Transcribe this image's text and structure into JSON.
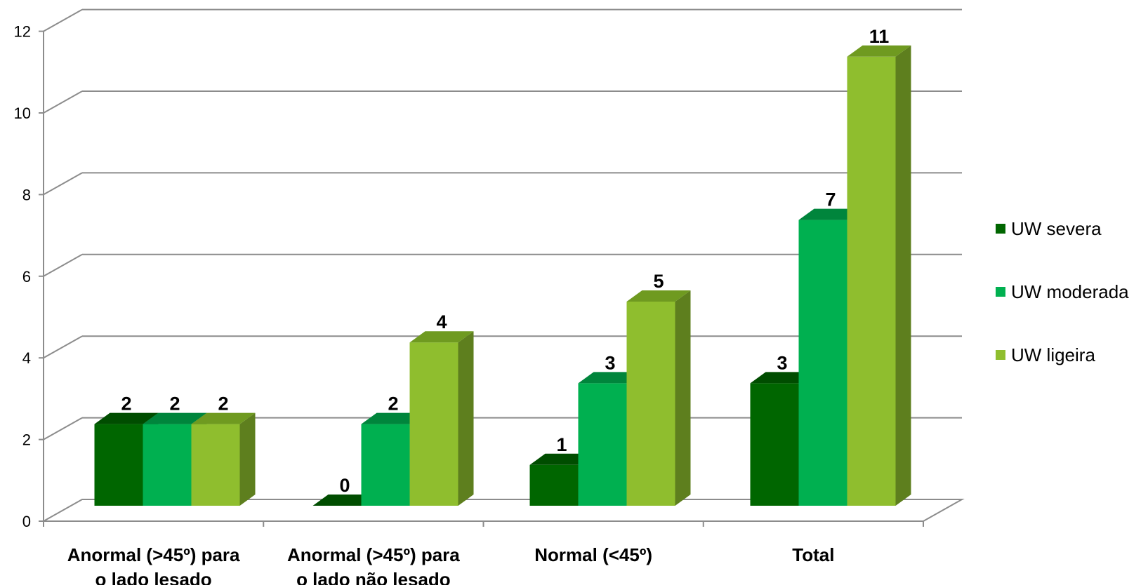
{
  "chart_data": {
    "type": "bar",
    "style": "3d-clustered-column",
    "categories": [
      [
        "Anormal (>45º) para",
        "o lado lesado"
      ],
      [
        "Anormal (>45º) para",
        "o lado não lesado"
      ],
      [
        "Normal (<45º)"
      ],
      [
        "Total"
      ]
    ],
    "series": [
      {
        "name": "UW severa",
        "values": [
          2,
          0,
          1,
          3
        ],
        "color": "#006600",
        "top": "#004d00",
        "side": "#004400"
      },
      {
        "name": "UW moderada",
        "values": [
          2,
          2,
          3,
          7
        ],
        "color": "#00b050",
        "top": "#00853c",
        "side": "#007a36"
      },
      {
        "name": "UW ligeira",
        "values": [
          2,
          4,
          5,
          11
        ],
        "color": "#8fbe2e",
        "top": "#6f9a20",
        "side": "#5e7f1e"
      }
    ],
    "ylim": [
      0,
      12
    ],
    "yticks": [
      0,
      2,
      4,
      6,
      8,
      10,
      12
    ],
    "title": "",
    "xlabel": "",
    "ylabel": "",
    "grid": true,
    "legend_position": "right",
    "data_labels": true
  }
}
